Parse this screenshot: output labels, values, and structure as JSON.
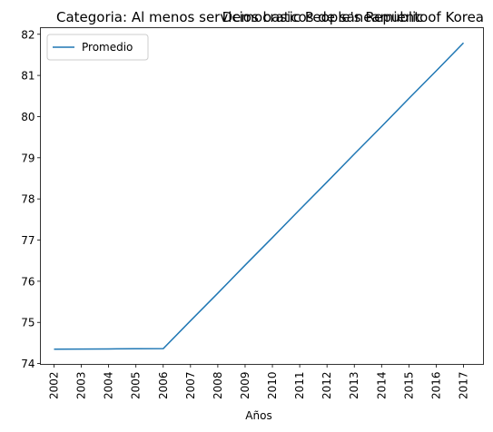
{
  "chart_data": {
    "type": "line",
    "title_left": "Categoria: Al menos servicios basicos de saneamiento",
    "title_right": "Democratic People's Republic of Korea",
    "xlabel": "Años",
    "ylabel": "",
    "x": [
      "2002",
      "2003",
      "2004",
      "2005",
      "2006",
      "2007",
      "2008",
      "2009",
      "2010",
      "2011",
      "2012",
      "2013",
      "2014",
      "2015",
      "2016",
      "2017"
    ],
    "series": [
      {
        "name": "Promedio",
        "color": "#1f77b4",
        "values": [
          74.35,
          74.353,
          74.356,
          74.359,
          74.362,
          75.04,
          75.71,
          76.39,
          77.06,
          77.74,
          78.41,
          79.09,
          79.76,
          80.44,
          81.11,
          81.79
        ]
      }
    ],
    "ylim": [
      73.98,
      82.16
    ],
    "yticks": [
      74,
      75,
      76,
      77,
      78,
      79,
      80,
      81,
      82
    ],
    "grid": false,
    "legend_position": "top-left"
  }
}
